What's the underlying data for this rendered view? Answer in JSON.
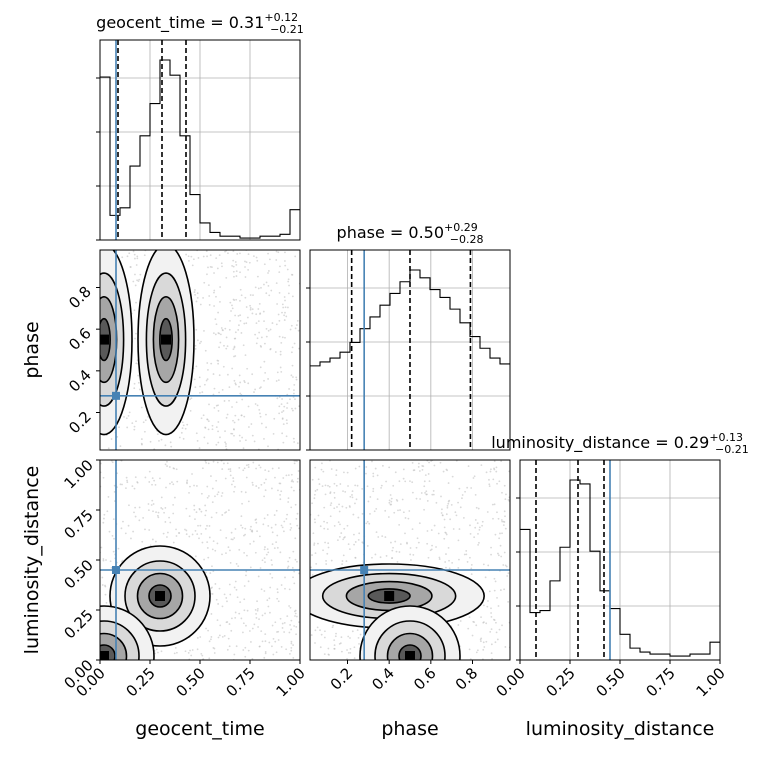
{
  "chart_data": {
    "type": "corner",
    "parameters": [
      "geocent_time",
      "phase",
      "luminosity_distance"
    ],
    "truth": {
      "geocent_time": 0.08,
      "phase": 0.28,
      "luminosity_distance": 0.45
    },
    "panels": {
      "geocent_time": {
        "title": {
          "name": "geocent_time",
          "median": "0.31",
          "plus": "+0.12",
          "minus": "−0.21"
        },
        "quantiles": [
          0.09,
          0.31,
          0.43
        ],
        "hist": {
          "edges": [
            0.0,
            0.05,
            0.1,
            0.15,
            0.2,
            0.25,
            0.3,
            0.35,
            0.4,
            0.45,
            0.5,
            0.55,
            0.6,
            0.65,
            0.7,
            0.75,
            0.8,
            0.85,
            0.9,
            0.95,
            1.0
          ],
          "counts": [
            0.86,
            0.13,
            0.17,
            0.39,
            0.55,
            0.72,
            0.95,
            0.87,
            0.55,
            0.24,
            0.09,
            0.04,
            0.02,
            0.02,
            0.01,
            0.01,
            0.02,
            0.02,
            0.03,
            0.16
          ]
        },
        "ticks": [
          "0.00",
          "0.25",
          "0.50",
          "0.75",
          "1.00"
        ],
        "tick_values": [
          0.0,
          0.25,
          0.5,
          0.75,
          1.0
        ]
      },
      "phase": {
        "title": {
          "name": "phase",
          "median": "0.50",
          "plus": "+0.29",
          "minus": "−0.28"
        },
        "quantiles": [
          0.22,
          0.5,
          0.79
        ],
        "hist": {
          "edges": [
            0.0,
            0.05,
            0.1,
            0.15,
            0.2,
            0.25,
            0.3,
            0.35,
            0.4,
            0.45,
            0.5,
            0.55,
            0.6,
            0.65,
            0.7,
            0.75,
            0.8,
            0.85,
            0.9,
            0.95,
            1.0
          ],
          "counts": [
            0.43,
            0.45,
            0.47,
            0.5,
            0.55,
            0.62,
            0.68,
            0.74,
            0.8,
            0.86,
            0.92,
            0.88,
            0.82,
            0.78,
            0.72,
            0.65,
            0.58,
            0.52,
            0.47,
            0.44
          ]
        },
        "ticks": [
          "0.2",
          "0.4",
          "0.6",
          "0.8"
        ],
        "tick_values": [
          0.2,
          0.4,
          0.6,
          0.8
        ]
      },
      "luminosity_distance": {
        "title": {
          "name": "luminosity_distance",
          "median": "0.29",
          "plus": "+0.13",
          "minus": "−0.21"
        },
        "quantiles": [
          0.08,
          0.29,
          0.42
        ],
        "hist": {
          "edges": [
            0.0,
            0.05,
            0.1,
            0.15,
            0.2,
            0.25,
            0.3,
            0.35,
            0.4,
            0.45,
            0.5,
            0.55,
            0.6,
            0.65,
            0.7,
            0.75,
            0.8,
            0.85,
            0.9,
            0.95,
            1.0
          ],
          "counts": [
            0.66,
            0.24,
            0.25,
            0.4,
            0.57,
            0.91,
            0.89,
            0.55,
            0.35,
            0.26,
            0.13,
            0.06,
            0.04,
            0.03,
            0.03,
            0.02,
            0.02,
            0.03,
            0.03,
            0.09
          ]
        },
        "ticks": [
          "0.00",
          "0.25",
          "0.50",
          "0.75",
          "1.00"
        ],
        "tick_values": [
          0.0,
          0.25,
          0.5,
          0.75,
          1.0
        ]
      }
    },
    "axis_labels": {
      "x": [
        "geocent_time",
        "phase",
        "luminosity_distance"
      ],
      "y": [
        "phase",
        "luminosity_distance"
      ]
    },
    "ranges": {
      "geocent_time": [
        0.0,
        1.0
      ],
      "phase": [
        0.02,
        0.98
      ],
      "luminosity_distance": [
        0.0,
        1.0
      ]
    },
    "density_peaks": [
      {
        "pair": [
          "geocent_time",
          "phase"
        ],
        "centers": [
          [
            0.02,
            0.55
          ],
          [
            0.33,
            0.55
          ]
        ]
      },
      {
        "pair": [
          "geocent_time",
          "luminosity_distance"
        ],
        "centers": [
          [
            0.3,
            0.32
          ],
          [
            0.02,
            0.02
          ]
        ]
      },
      {
        "pair": [
          "phase",
          "luminosity_distance"
        ],
        "centers": [
          [
            0.4,
            0.32
          ],
          [
            0.5,
            0.02
          ]
        ]
      }
    ],
    "colors": {
      "truth": "#4682b4",
      "hist": "#000000",
      "quantile": "#000000",
      "grid": "#b0b0b0",
      "scatter": "#bfbfbf"
    },
    "grid": true
  }
}
